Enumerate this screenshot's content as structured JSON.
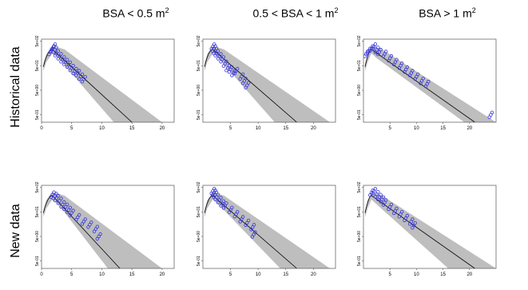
{
  "columns": [
    {
      "title": "BSA < 0.5 m",
      "sup": "2"
    },
    {
      "title": "0.5 < BSA < 1 m",
      "sup": "2"
    },
    {
      "title": "BSA > 1 m",
      "sup": "2"
    }
  ],
  "rows": [
    {
      "title": "Historical data"
    },
    {
      "title": "New data"
    }
  ],
  "colors": {
    "points": "#3333dd",
    "band": "#bebebe",
    "line": "#000000",
    "frame": "#555555"
  },
  "chart_data": [
    {
      "type": "scatter",
      "panel": "historical-bsa-lt-0.5",
      "y_scale": "log",
      "ytick_labels": [
        "5e-01",
        "5e+00",
        "5e+01",
        "5e+02"
      ],
      "xticks": [
        0,
        5,
        10,
        15,
        20
      ],
      "xlim": [
        0,
        22
      ],
      "band": {
        "peak_x": 1.8,
        "end_x_lower": 12,
        "end_x_median": 15,
        "end_x_upper": 20
      },
      "points": [
        [
          1.5,
          180
        ],
        [
          1.8,
          250
        ],
        [
          2,
          300
        ],
        [
          2.2,
          220
        ],
        [
          2.5,
          160
        ],
        [
          3,
          120
        ],
        [
          3.5,
          90
        ],
        [
          4,
          70
        ],
        [
          4.5,
          55
        ],
        [
          5,
          40
        ],
        [
          5.5,
          30
        ],
        [
          6,
          25
        ],
        [
          6.5,
          18
        ],
        [
          7,
          14
        ]
      ]
    },
    {
      "type": "scatter",
      "panel": "historical-bsa-0.5-1",
      "y_scale": "log",
      "ytick_labels": [
        "5e-01",
        "5e+00",
        "5e+01",
        "5e+02"
      ],
      "xticks": [
        5,
        10,
        15,
        20
      ],
      "xlim": [
        0,
        24
      ],
      "band": {
        "peak_x": 1.8,
        "end_x_lower": 13,
        "end_x_median": 17,
        "end_x_upper": 23
      },
      "points": [
        [
          1.8,
          300
        ],
        [
          2,
          250
        ],
        [
          2.2,
          200
        ],
        [
          2.5,
          160
        ],
        [
          3,
          120
        ],
        [
          3.5,
          90
        ],
        [
          4,
          60
        ],
        [
          4.5,
          40
        ],
        [
          5,
          35
        ],
        [
          5.5,
          25
        ],
        [
          6,
          30
        ],
        [
          7,
          18
        ],
        [
          7.5,
          12
        ],
        [
          8,
          8
        ]
      ]
    },
    {
      "type": "scatter",
      "panel": "historical-bsa-gt-1",
      "y_scale": "log",
      "ytick_labels": [
        "5e-01",
        "5e+00",
        "5e+01",
        "5e+02"
      ],
      "xticks": [
        5,
        10,
        15,
        20
      ],
      "xlim": [
        0,
        25
      ],
      "band": {
        "peak_x": 1.5,
        "end_x_lower": 19,
        "end_x_median": 21,
        "end_x_upper": 25
      },
      "points": [
        [
          0.5,
          150
        ],
        [
          1,
          200
        ],
        [
          1.5,
          250
        ],
        [
          2,
          300
        ],
        [
          2.5,
          220
        ],
        [
          3,
          180
        ],
        [
          4,
          150
        ],
        [
          5,
          100
        ],
        [
          6,
          70
        ],
        [
          7,
          50
        ],
        [
          8,
          35
        ],
        [
          9,
          25
        ],
        [
          10,
          18
        ],
        [
          11,
          12
        ],
        [
          12,
          9
        ],
        [
          24,
          0.5
        ]
      ]
    },
    {
      "type": "scatter",
      "panel": "new-bsa-lt-0.5",
      "y_scale": "log",
      "ytick_labels": [
        "5e-01",
        "5e+00",
        "5e+01",
        "5e+02"
      ],
      "xticks": [
        0,
        5,
        10,
        15,
        20
      ],
      "xlim": [
        0,
        22
      ],
      "band": {
        "peak_x": 1.8,
        "end_x_lower": 11,
        "end_x_median": 13,
        "end_x_upper": 20
      },
      "points": [
        [
          1.8,
          250
        ],
        [
          2.2,
          220
        ],
        [
          2.5,
          180
        ],
        [
          3,
          140
        ],
        [
          3.5,
          100
        ],
        [
          4,
          80
        ],
        [
          4.5,
          60
        ],
        [
          5,
          45
        ],
        [
          6,
          30
        ],
        [
          7,
          20
        ],
        [
          8,
          15
        ],
        [
          9,
          10
        ],
        [
          9.5,
          5
        ]
      ]
    },
    {
      "type": "scatter",
      "panel": "new-bsa-0.5-1",
      "y_scale": "log",
      "ytick_labels": [
        "5e-01",
        "5e+00",
        "5e+01",
        "5e+02"
      ],
      "xticks": [
        5,
        10,
        15,
        20
      ],
      "xlim": [
        0,
        24
      ],
      "band": {
        "peak_x": 1.8,
        "end_x_lower": 14,
        "end_x_median": 17,
        "end_x_upper": 23
      },
      "points": [
        [
          1.8,
          350
        ],
        [
          2,
          300
        ],
        [
          2.2,
          250
        ],
        [
          2.5,
          200
        ],
        [
          3,
          150
        ],
        [
          3.5,
          110
        ],
        [
          4,
          90
        ],
        [
          5,
          60
        ],
        [
          6,
          40
        ],
        [
          7,
          25
        ],
        [
          8,
          18
        ],
        [
          9,
          12
        ],
        [
          9.2,
          6
        ]
      ]
    },
    {
      "type": "scatter",
      "panel": "new-bsa-gt-1",
      "y_scale": "log",
      "ytick_labels": [
        "5e-01",
        "5e+00",
        "5e+01",
        "5e+02"
      ],
      "xticks": [
        5,
        10,
        15,
        20
      ],
      "xlim": [
        0,
        25
      ],
      "band": {
        "peak_x": 1.5,
        "end_x_lower": 16,
        "end_x_median": 21,
        "end_x_upper": 25
      },
      "points": [
        [
          1.5,
          300
        ],
        [
          2,
          350
        ],
        [
          2.5,
          260
        ],
        [
          3,
          200
        ],
        [
          3.5,
          160
        ],
        [
          4,
          120
        ],
        [
          5,
          80
        ],
        [
          6,
          55
        ],
        [
          7,
          40
        ],
        [
          8,
          28
        ],
        [
          9,
          20
        ],
        [
          9.5,
          14
        ]
      ]
    }
  ]
}
